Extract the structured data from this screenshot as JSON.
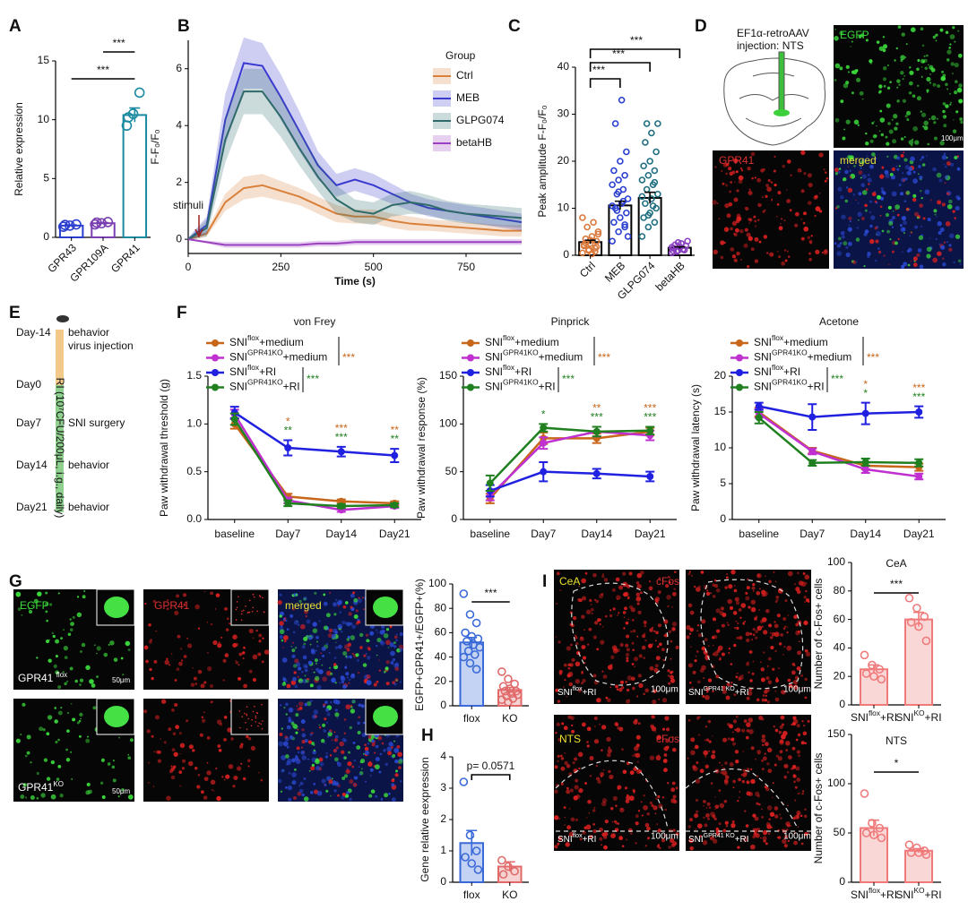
{
  "chart_data": [
    {
      "type": "bar",
      "categories": [
        "GPR43",
        "GPR109A",
        "GPR41"
      ],
      "values": [
        1.0,
        1.2,
        10.4
      ],
      "errors": [
        0.05,
        0.05,
        0.6
      ],
      "points": [
        [
          0.9,
          1.0,
          1.1,
          1.05
        ],
        [
          1.1,
          1.2,
          1.3,
          1.25
        ],
        [
          9.5,
          10.5,
          12.3,
          10.2
        ]
      ],
      "colors": [
        "#2a3fcf",
        "#7a3fb0",
        "#1a8aa0"
      ],
      "ylabel": "Relative expression",
      "ylim": [
        0,
        15
      ],
      "yticks": [
        0,
        5,
        10,
        15
      ],
      "annotations": [
        "***",
        "***"
      ]
    },
    {
      "type": "line",
      "xlabel": "Time (s)",
      "ylabel": "F-F₀/F₀",
      "legend_title": "Group",
      "annotation": "stimuli",
      "x": [
        0,
        50,
        100,
        150,
        200,
        250,
        300,
        350,
        400,
        450,
        500,
        550,
        600,
        650,
        700,
        750,
        800,
        850,
        900
      ],
      "xlim": [
        0,
        900
      ],
      "xticks": [
        0,
        250,
        500,
        750
      ],
      "ylim": [
        -0.5,
        7
      ],
      "yticks": [
        0,
        2,
        4,
        6
      ],
      "series": [
        {
          "name": "Ctrl",
          "color": "#d9803a",
          "values": [
            0,
            0.2,
            1.3,
            1.8,
            1.9,
            1.7,
            1.5,
            1.2,
            0.9,
            0.8,
            0.8,
            0.65,
            0.55,
            0.5,
            0.45,
            0.4,
            0.35,
            0.3,
            0.3
          ],
          "errors": [
            0.05,
            0.1,
            0.3,
            0.4,
            0.4,
            0.35,
            0.3,
            0.3,
            0.3,
            0.25,
            0.25,
            0.25,
            0.25,
            0.2,
            0.2,
            0.2,
            0.2,
            0.2,
            0.2
          ]
        },
        {
          "name": "MEB",
          "color": "#3a3ad0",
          "values": [
            0,
            0.5,
            4.2,
            6.2,
            6.1,
            5.0,
            3.8,
            2.6,
            1.9,
            2.1,
            1.9,
            1.6,
            1.3,
            1.1,
            1.0,
            0.9,
            0.8,
            0.7,
            0.6
          ],
          "errors": [
            0.05,
            0.3,
            0.9,
            0.9,
            0.8,
            0.8,
            0.7,
            0.5,
            0.4,
            0.4,
            0.4,
            0.35,
            0.3,
            0.3,
            0.3,
            0.3,
            0.3,
            0.3,
            0.3
          ]
        },
        {
          "name": "GLPG074",
          "color": "#2f6a6a",
          "values": [
            0,
            0.4,
            3.5,
            5.2,
            5.2,
            4.3,
            3.2,
            2.2,
            1.4,
            1.0,
            0.9,
            1.2,
            1.3,
            1.2,
            1.0,
            0.9,
            0.85,
            0.8,
            0.75
          ],
          "errors": [
            0.05,
            0.3,
            0.8,
            0.8,
            0.8,
            0.7,
            0.6,
            0.5,
            0.5,
            0.4,
            0.4,
            0.4,
            0.4,
            0.35,
            0.35,
            0.35,
            0.35,
            0.35,
            0.35
          ]
        },
        {
          "name": "betaHB",
          "color": "#9a40c0",
          "values": [
            0,
            -0.1,
            -0.2,
            -0.2,
            -0.2,
            -0.2,
            -0.2,
            -0.15,
            -0.15,
            -0.1,
            -0.1,
            -0.1,
            -0.1,
            -0.1,
            -0.1,
            -0.1,
            -0.1,
            -0.1,
            -0.1
          ],
          "errors": [
            0.02,
            0.05,
            0.1,
            0.1,
            0.1,
            0.1,
            0.1,
            0.1,
            0.1,
            0.1,
            0.1,
            0.1,
            0.1,
            0.1,
            0.1,
            0.1,
            0.1,
            0.1,
            0.1
          ]
        }
      ]
    },
    {
      "type": "bar",
      "categories": [
        "Ctrl",
        "MEB",
        "GLPG074",
        "betaHB"
      ],
      "values": [
        2.8,
        10.6,
        12.2,
        1.6
      ],
      "errors": [
        0.4,
        0.9,
        1.2,
        0.2
      ],
      "points": [
        [
          0.5,
          1,
          1.5,
          2,
          2.5,
          3,
          3.5,
          4,
          5,
          6,
          7,
          8,
          1.2,
          0.8,
          2.2,
          3.2,
          1.8,
          2.6,
          0.3,
          4.5
        ],
        [
          3,
          5,
          6,
          7,
          8,
          9,
          10,
          11,
          12,
          13,
          14,
          15,
          16,
          17,
          18,
          20,
          22,
          28,
          33,
          4,
          9.5,
          11.5,
          10.5,
          13.5,
          6.5
        ],
        [
          4,
          6,
          7,
          8,
          9,
          10,
          11,
          12,
          13,
          14,
          15,
          16,
          17,
          18,
          19,
          20,
          22,
          24,
          26,
          28,
          28,
          10.5,
          12.5,
          8.5,
          15.5
        ],
        [
          0.5,
          1,
          1.2,
          1.5,
          1.8,
          2,
          2.2,
          2.5,
          3,
          0.8,
          1.3,
          1.7,
          2.7,
          1.1,
          0.9
        ]
      ],
      "colors": [
        "#d9783a",
        "#2a3fcf",
        "#1f6f80",
        "#8a3fc0"
      ],
      "ylabel": "Peak amplitude F-F₀/F₀",
      "ylim": [
        0,
        40
      ],
      "yticks": [
        0,
        10,
        20,
        30,
        40
      ],
      "annotations": [
        "***",
        "***",
        "***"
      ]
    },
    {
      "type": "catline",
      "title": "von Frey",
      "ylabel": "Paw withdrawal threshold (g)",
      "categories": [
        "baseline",
        "Day7",
        "Day14",
        "Day21"
      ],
      "ylim": [
        0,
        1.5
      ],
      "yticks": [
        {
          "value": 0,
          "label": "0.0"
        },
        0.5,
        {
          "value": 1,
          "label": "1.0"
        },
        1.5
      ],
      "series": [
        {
          "name": [
            "SNI",
            "flox",
            "+medium"
          ],
          "color": "#c8661a",
          "values": [
            1.0,
            0.24,
            0.19,
            0.17
          ],
          "errors": [
            0.05,
            0.03,
            0.02,
            0.02
          ]
        },
        {
          "name": [
            "SNI",
            "GPR41KO",
            "+medium"
          ],
          "color": "#c030d0",
          "values": [
            1.1,
            0.2,
            0.1,
            0.14
          ],
          "errors": [
            0.05,
            0.03,
            0.02,
            0.02
          ]
        },
        {
          "name": [
            "SNI",
            "flox",
            "+RI"
          ],
          "color": "#2020e0",
          "values": [
            1.12,
            0.75,
            0.71,
            0.67
          ],
          "errors": [
            0.06,
            0.08,
            0.05,
            0.07
          ]
        },
        {
          "name": [
            "SNI",
            "GPR41KO",
            "+RI"
          ],
          "color": "#208020",
          "values": [
            1.05,
            0.17,
            0.14,
            0.15
          ],
          "errors": [
            0.06,
            0.03,
            0.02,
            0.02
          ]
        }
      ],
      "legend_stats": [
        "***",
        "***"
      ],
      "stars": [
        [
          null,
          "*",
          "***",
          "**"
        ],
        [
          null,
          "**",
          "***",
          "**"
        ]
      ]
    },
    {
      "type": "catline",
      "title": "Pinprick",
      "ylabel": "Paw withdrawal response (%)",
      "categories": [
        "baseline",
        "Day7",
        "Day14",
        "Day21"
      ],
      "ylim": [
        0,
        150
      ],
      "yticks": [
        0,
        50,
        100,
        150
      ],
      "series": [
        {
          "name": [
            "SNI",
            "flox",
            "+medium"
          ],
          "color": "#c8661a",
          "values": [
            22,
            85,
            85,
            92
          ],
          "errors": [
            5,
            6,
            5,
            4
          ]
        },
        {
          "name": [
            "SNI",
            "GPR41KO",
            "+medium"
          ],
          "color": "#c030d0",
          "values": [
            25,
            80,
            92,
            88
          ],
          "errors": [
            5,
            6,
            5,
            5
          ]
        },
        {
          "name": [
            "SNI",
            "flox",
            "+RI"
          ],
          "color": "#2020e0",
          "values": [
            30,
            50,
            48,
            45
          ],
          "errors": [
            6,
            10,
            5,
            5
          ]
        },
        {
          "name": [
            "SNI",
            "GPR41KO",
            "+RI"
          ],
          "color": "#208020",
          "values": [
            38,
            96,
            92,
            93
          ],
          "errors": [
            8,
            4,
            5,
            4
          ]
        }
      ],
      "legend_stats": [
        "***",
        "***"
      ],
      "stars": [
        [
          null,
          null,
          "**",
          "***"
        ],
        [
          null,
          "*",
          "***",
          "***"
        ]
      ]
    },
    {
      "type": "catline",
      "title": "Acetone",
      "ylabel": "Paw withdrawal latency (s)",
      "categories": [
        "baseline",
        "Day7",
        "Day14",
        "Day21"
      ],
      "ylim": [
        0,
        20
      ],
      "yticks": [
        0,
        5,
        10,
        15,
        20
      ],
      "series": [
        {
          "name": [
            "SNI",
            "flox",
            "+medium"
          ],
          "color": "#c8661a",
          "values": [
            15,
            9.6,
            7.5,
            7.3
          ],
          "errors": [
            0.6,
            0.4,
            0.5,
            0.5
          ]
        },
        {
          "name": [
            "SNI",
            "GPR41KO",
            "+medium"
          ],
          "color": "#c030d0",
          "values": [
            14.8,
            9.5,
            7,
            6
          ],
          "errors": [
            0.6,
            0.4,
            0.5,
            0.4
          ]
        },
        {
          "name": [
            "SNI",
            "flox",
            "+RI"
          ],
          "color": "#2020e0",
          "values": [
            15.8,
            14.3,
            14.8,
            15
          ],
          "errors": [
            0.5,
            1.8,
            1.5,
            0.8
          ]
        },
        {
          "name": [
            "SNI",
            "GPR41KO",
            "+RI"
          ],
          "color": "#208020",
          "values": [
            14.2,
            7.9,
            8,
            7.9
          ],
          "errors": [
            0.8,
            0.4,
            0.5,
            0.5
          ]
        }
      ],
      "legend_stats": [
        "***",
        "***"
      ],
      "stars": [
        [
          null,
          null,
          "*",
          "***"
        ],
        [
          null,
          null,
          "*",
          "***"
        ]
      ]
    },
    {
      "type": "bar",
      "categories": [
        "flox",
        "KO"
      ],
      "values": [
        52,
        13
      ],
      "errors": [
        4,
        2
      ],
      "points": [
        [
          92,
          75,
          68,
          60,
          57,
          55,
          53,
          50,
          48,
          45,
          42,
          40,
          35,
          30
        ],
        [
          28,
          22,
          18,
          16,
          14,
          12,
          12,
          10,
          9,
          8,
          6,
          5,
          3
        ]
      ],
      "colors": [
        "#3a6ad8",
        "#e06a6a"
      ],
      "ylabel": "EGFP+GPR41+/EGFP+(%)",
      "ylim": [
        0,
        100
      ],
      "yticks": [
        0,
        20,
        40,
        60,
        80,
        100
      ],
      "annotations": [
        "***"
      ]
    },
    {
      "type": "bar",
      "categories": [
        "flox",
        "KO"
      ],
      "values": [
        1.25,
        0.5
      ],
      "errors": [
        0.4,
        0.15
      ],
      "points": [
        [
          3.2,
          1.5,
          1.0,
          0.8,
          0.6,
          0.4
        ],
        [
          0.7,
          0.5,
          0.35,
          0.25
        ]
      ],
      "colors": [
        "#3a6ad8",
        "#e06a6a"
      ],
      "ylabel": "Gene relative eexpression",
      "ylim": [
        0,
        4
      ],
      "yticks": [
        0,
        1,
        2,
        3,
        4
      ],
      "annotations": [
        "p= 0.0571"
      ]
    },
    {
      "type": "bar",
      "title": "CeA",
      "categories": [
        [
          "SNI",
          "flox",
          "+RI"
        ],
        [
          "SNI",
          "KO",
          "+RI"
        ]
      ],
      "values": [
        25,
        60
      ],
      "errors": [
        3,
        5
      ],
      "points": [
        [
          35,
          28,
          25,
          22,
          20,
          18
        ],
        [
          75,
          68,
          62,
          58,
          55,
          45
        ]
      ],
      "colors": [
        "#f07a7a",
        "#f07a7a"
      ],
      "ylabel": "Number of c-Fos+ cells",
      "ylim": [
        0,
        100
      ],
      "yticks": [
        0,
        20,
        40,
        60,
        80,
        100
      ],
      "annotations": [
        "***"
      ]
    },
    {
      "type": "bar",
      "title": "NTS",
      "categories": [
        [
          "SNI",
          "flox",
          "+RI"
        ],
        [
          "SNI",
          "KO",
          "+RI"
        ]
      ],
      "values": [
        55,
        32
      ],
      "errors": [
        8,
        2
      ],
      "points": [
        [
          90,
          60,
          55,
          50,
          48,
          45
        ],
        [
          38,
          35,
          32,
          30,
          30,
          28
        ]
      ],
      "colors": [
        "#f07a7a",
        "#f07a7a"
      ],
      "ylabel": "Number of c-Fos+ cells",
      "ylim": [
        0,
        150
      ],
      "yticks": [
        0,
        50,
        100,
        150
      ],
      "annotations": [
        "*"
      ]
    }
  ],
  "labels": {
    "panel_letters": [
      "A",
      "B",
      "C",
      "D",
      "E",
      "F",
      "G",
      "H",
      "I"
    ],
    "D": {
      "schematic": [
        "EF1α-retroAAV",
        "injection: NTS"
      ],
      "egfp": "EGFP",
      "scale": "100μm",
      "gpr41": "GPR41",
      "merged": "merged"
    },
    "E": {
      "days": [
        "Day-14",
        "Day0",
        "Day7",
        "Day14",
        "Day21"
      ],
      "events": [
        "behavior",
        "virus injection",
        "SNI surgery",
        "behavior",
        "behavior"
      ],
      "treatment": "RI (10⁷CFU/200μL, i.g., daily)"
    },
    "G": {
      "egfp": "EGFP",
      "gpr41": "GPR41",
      "merged": "merged",
      "flox": [
        "GPR41 ",
        "flox"
      ],
      "ko": [
        "GPR41",
        "KO"
      ],
      "scale": [
        "50μm",
        "50μm"
      ]
    },
    "I": {
      "cea": "CeA",
      "nts": "NTS",
      "cfos": [
        "cFos",
        "cFos"
      ],
      "groups": [
        [
          "SNI",
          "flox",
          "+RI"
        ],
        [
          "SNI",
          "GPR41 KO",
          "+RI"
        ],
        [
          "SNI",
          "flox",
          "+RI"
        ],
        [
          "SNI",
          "GPR41 KO",
          "+RI"
        ]
      ],
      "scale": [
        "100μm",
        "100μm",
        "100μm",
        "100μm"
      ]
    }
  }
}
